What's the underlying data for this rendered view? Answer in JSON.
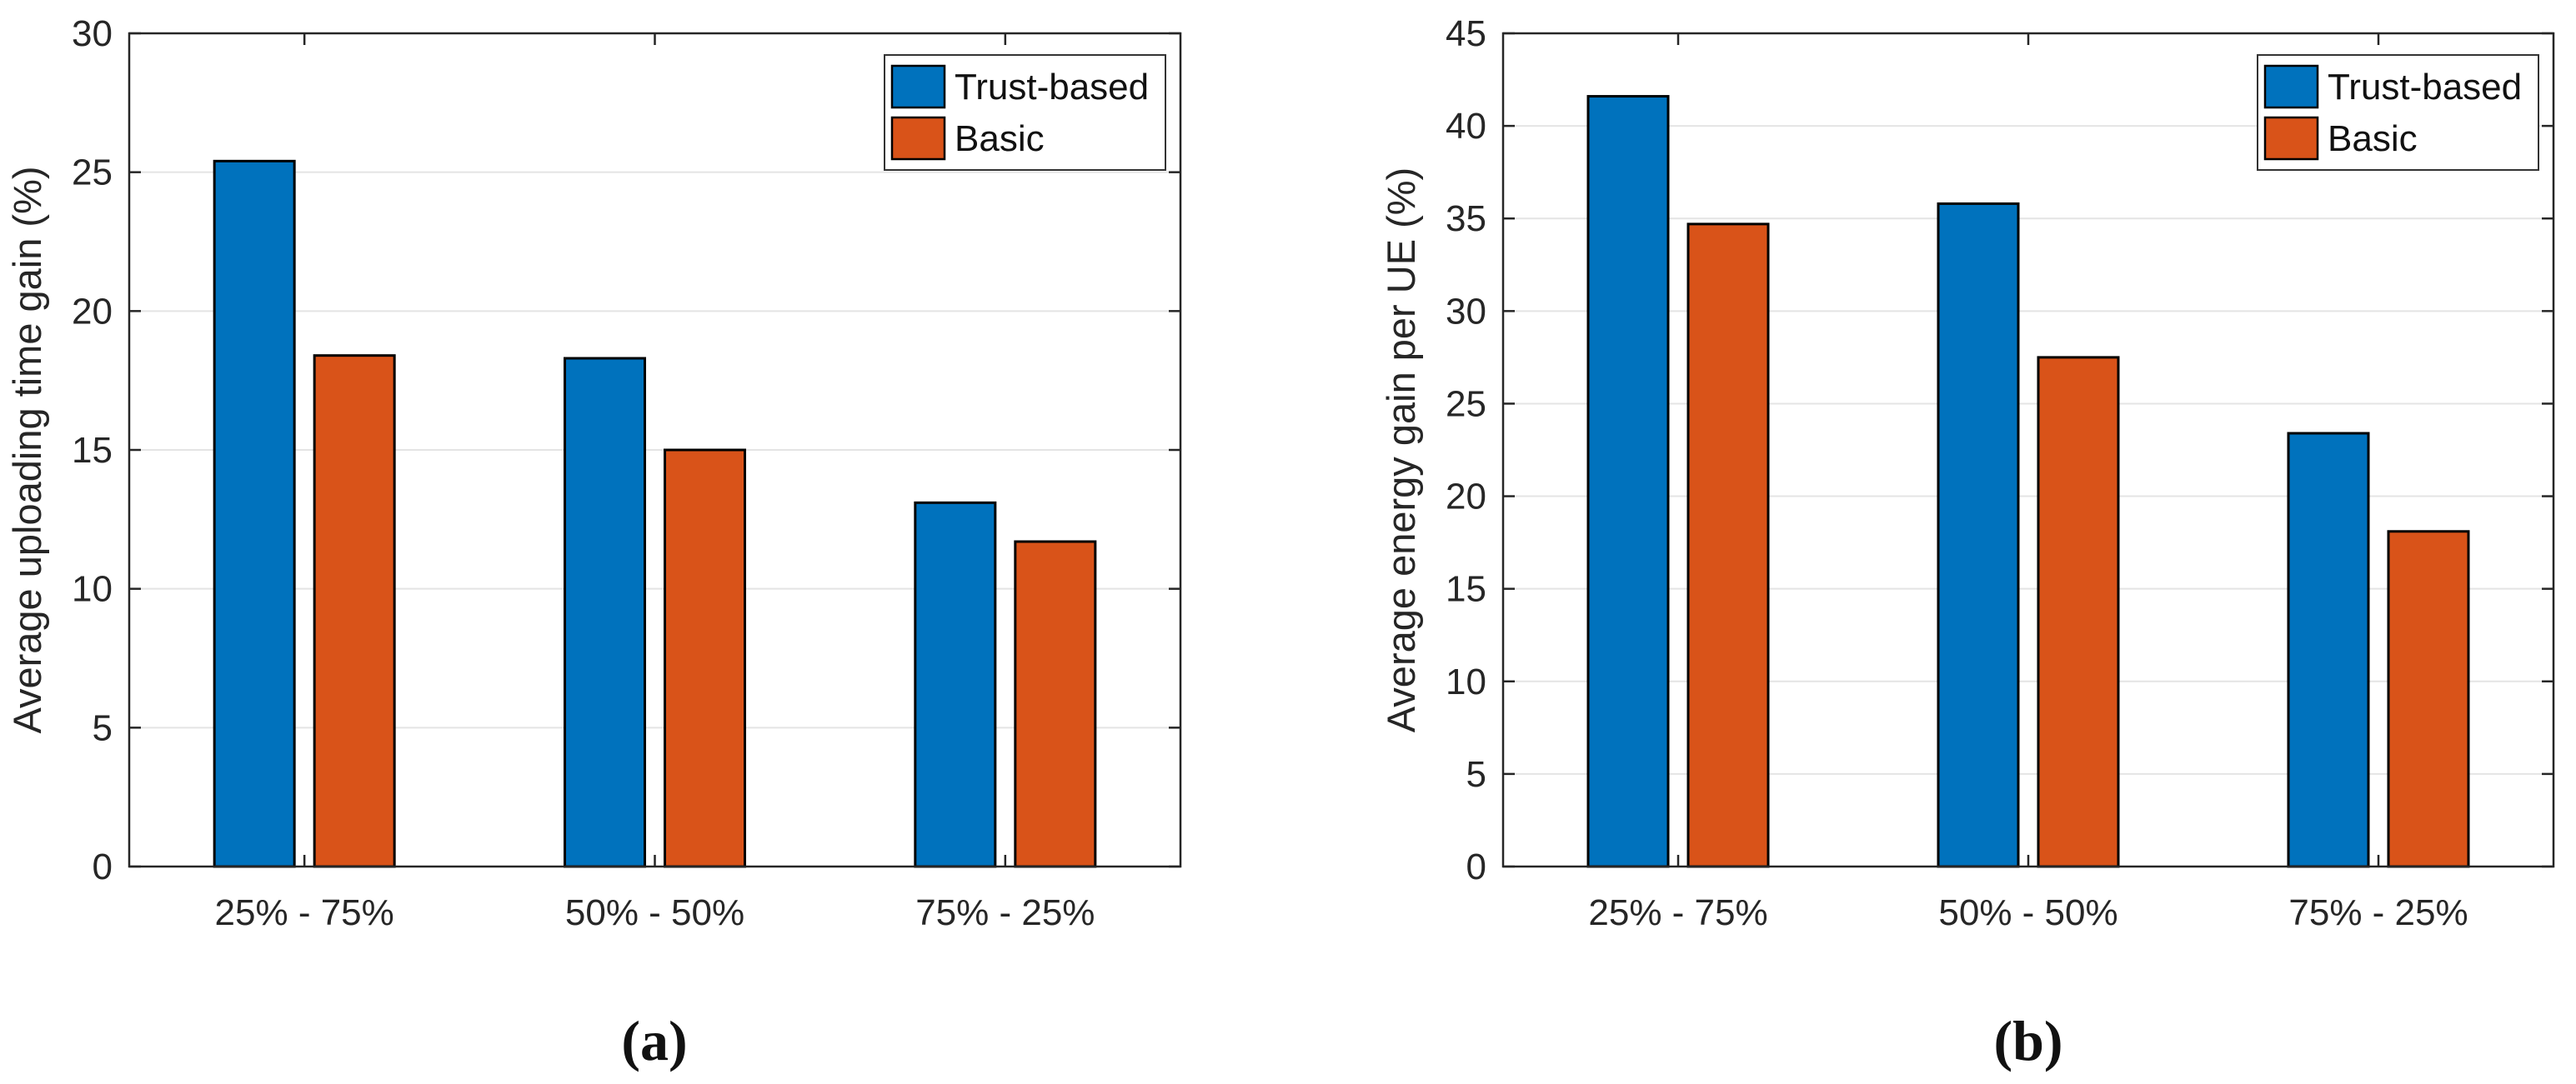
{
  "figure": {
    "background": "#ffffff",
    "axis_color": "#262626",
    "grid_color": "#e4e4e4",
    "bar_edge_color": "#000000",
    "legend_border_color": "#333333"
  },
  "chart_data": [
    {
      "type": "bar",
      "caption": "(a)",
      "categories": [
        "25% - 75%",
        "50% - 50%",
        "75% - 25%"
      ],
      "series": [
        {
          "name": "Trust-based",
          "color": "#0072BD",
          "values": [
            25.4,
            18.3,
            13.1
          ]
        },
        {
          "name": "Basic",
          "color": "#D95319",
          "values": [
            18.4,
            15.0,
            11.7
          ]
        }
      ],
      "xlabel": "",
      "ylabel": "Average uploading time gain (%)",
      "ylim": [
        0,
        30
      ],
      "yticks": [
        0,
        5,
        10,
        15,
        20,
        25,
        30
      ],
      "grid": "horizontal",
      "legend_position": "top-right",
      "legend": [
        "Trust-based",
        "Basic"
      ]
    },
    {
      "type": "bar",
      "caption": "(b)",
      "categories": [
        "25% - 75%",
        "50% - 50%",
        "75% - 25%"
      ],
      "series": [
        {
          "name": "Trust-based",
          "color": "#0072BD",
          "values": [
            41.6,
            35.8,
            23.4
          ]
        },
        {
          "name": "Basic",
          "color": "#D95319",
          "values": [
            34.7,
            27.5,
            18.1
          ]
        }
      ],
      "xlabel": "",
      "ylabel": "Average energy gain per UE (%)",
      "ylim": [
        0,
        45
      ],
      "yticks": [
        0,
        5,
        10,
        15,
        20,
        25,
        30,
        35,
        40,
        45
      ],
      "grid": "horizontal",
      "legend_position": "top-right",
      "legend": [
        "Trust-based",
        "Basic"
      ]
    }
  ]
}
